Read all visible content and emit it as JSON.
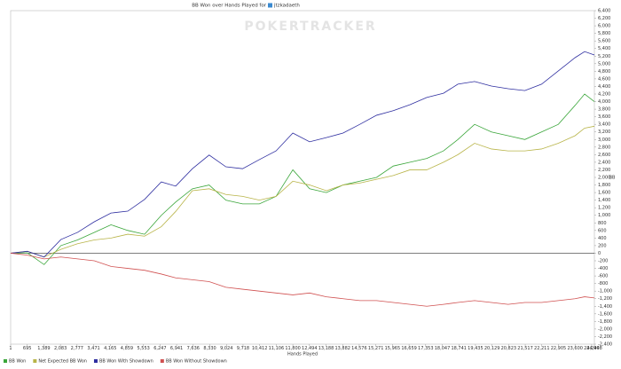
{
  "chart_data": {
    "type": "line",
    "title": "BB Won over Hands Played for",
    "player": "jtzkadaeth",
    "watermark": "POKERTRACKER",
    "x_label": "Hands Played",
    "y_label": "BB",
    "x": [
      0,
      700,
      1400,
      2100,
      2800,
      3500,
      4200,
      4900,
      5600,
      6300,
      6900,
      7600,
      8300,
      9000,
      9700,
      10400,
      11100,
      11800,
      12500,
      13200,
      13900,
      14600,
      15300,
      16000,
      16700,
      17400,
      18100,
      18700,
      19400,
      20100,
      20800,
      21500,
      22200,
      22900,
      23600,
      24000,
      24408
    ],
    "series": [
      {
        "name": "BB Won",
        "color": "#3aa63a",
        "values": [
          0,
          10,
          -300,
          200,
          350,
          550,
          750,
          600,
          500,
          1000,
          1350,
          1700,
          1800,
          1400,
          1300,
          1300,
          1500,
          2200,
          1700,
          1600,
          1800,
          1900,
          2000,
          2300,
          2400,
          2500,
          2700,
          3000,
          3400,
          3200,
          3100,
          3000,
          3200,
          3400,
          3900,
          4200,
          4000
        ]
      },
      {
        "name": "Net Expected BB Won",
        "color": "#b8b448",
        "values": [
          0,
          50,
          -100,
          100,
          250,
          350,
          400,
          500,
          450,
          700,
          1100,
          1650,
          1700,
          1550,
          1500,
          1400,
          1500,
          1900,
          1800,
          1650,
          1800,
          1850,
          1950,
          2050,
          2200,
          2200,
          2400,
          2600,
          2900,
          2750,
          2700,
          2700,
          2750,
          2900,
          3100,
          3300,
          3350
        ]
      },
      {
        "name": "BB Won With Showdown",
        "color": "#2e2ea0",
        "values": [
          0,
          50,
          -100,
          360,
          550,
          830,
          1060,
          1110,
          1420,
          1880,
          1770,
          2230,
          2590,
          2280,
          2230,
          2470,
          2700,
          3170,
          2940,
          3050,
          3170,
          3400,
          3640,
          3760,
          3920,
          4110,
          4220,
          4460,
          4530,
          4410,
          4340,
          4290,
          4460,
          4810,
          5160,
          5320,
          5230
        ]
      },
      {
        "name": "BB Won Without Showdown",
        "color": "#d05050",
        "values": [
          0,
          -50,
          -150,
          -100,
          -150,
          -200,
          -350,
          -400,
          -450,
          -550,
          -650,
          -700,
          -750,
          -900,
          -950,
          -1000,
          -1050,
          -1100,
          -1050,
          -1150,
          -1200,
          -1250,
          -1250,
          -1300,
          -1350,
          -1400,
          -1350,
          -1300,
          -1250,
          -1300,
          -1350,
          -1300,
          -1300,
          -1250,
          -1200,
          -1150,
          -1180
        ]
      }
    ],
    "xlim": [
      1,
      24408
    ],
    "xticks": [
      1,
      695,
      {
        "value": 1389,
        "label": "1,389"
      },
      {
        "value": 2083,
        "label": "2,083"
      },
      {
        "value": 2777,
        "label": "2,777"
      },
      {
        "value": 3471,
        "label": "3,471"
      },
      {
        "value": 4165,
        "label": "4,165"
      },
      {
        "value": 4859,
        "label": "4,859"
      },
      {
        "value": 5553,
        "label": "5,553"
      },
      {
        "value": 6247,
        "label": "6,247"
      },
      {
        "value": 6941,
        "label": "6,941"
      },
      {
        "value": 7636,
        "label": "7,636"
      },
      {
        "value": 8330,
        "label": "8,330"
      },
      {
        "value": 9024,
        "label": "9,024"
      },
      {
        "value": 9718,
        "label": "9,718"
      },
      {
        "value": 10412,
        "label": "10,412"
      },
      {
        "value": 11106,
        "label": "11,106"
      },
      {
        "value": 11800,
        "label": "11,800"
      },
      {
        "value": 12494,
        "label": "12,494"
      },
      {
        "value": 13188,
        "label": "13,188"
      },
      {
        "value": 13882,
        "label": "13,882"
      },
      {
        "value": 14576,
        "label": "14,576"
      },
      {
        "value": 15271,
        "label": "15,271"
      },
      {
        "value": 15965,
        "label": "15,965"
      },
      {
        "value": 16659,
        "label": "16,659"
      },
      {
        "value": 17353,
        "label": "17,353"
      },
      {
        "value": 18047,
        "label": "18,047"
      },
      {
        "value": 18741,
        "label": "18,741"
      },
      {
        "value": 19435,
        "label": "19,435"
      },
      {
        "value": 20129,
        "label": "20,129"
      },
      {
        "value": 20823,
        "label": "20,823"
      },
      {
        "value": 21517,
        "label": "21,517"
      },
      {
        "value": 22211,
        "label": "22,211"
      },
      {
        "value": 22905,
        "label": "22,905"
      },
      {
        "value": 23600,
        "label": "23,600"
      },
      {
        "value": 24294,
        "label": "24,294"
      },
      {
        "value": 24408,
        "label": "24,408"
      }
    ],
    "ylim": [
      -2400,
      6400
    ],
    "yticks": [
      {
        "value": -2400,
        "label": "-2,400"
      },
      {
        "value": -2200,
        "label": "-2,200"
      },
      {
        "value": -2000,
        "label": "-2,000"
      },
      {
        "value": -1800,
        "label": "-1,800"
      },
      {
        "value": -1600,
        "label": "-1,600"
      },
      {
        "value": -1400,
        "label": "-1,400"
      },
      {
        "value": -1200,
        "label": "-1,200"
      },
      {
        "value": -1000,
        "label": "-1,000"
      },
      -800,
      -600,
      -400,
      -200,
      0,
      200,
      400,
      600,
      800,
      {
        "value": 1000,
        "label": "1,000"
      },
      {
        "value": 1200,
        "label": "1,200"
      },
      {
        "value": 1400,
        "label": "1,400"
      },
      {
        "value": 1600,
        "label": "1,600"
      },
      {
        "value": 1800,
        "label": "1,800"
      },
      {
        "value": 2000,
        "label": "2,000"
      },
      {
        "value": 2200,
        "label": "2,200"
      },
      {
        "value": 2400,
        "label": "2,400"
      },
      {
        "value": 2600,
        "label": "2,600"
      },
      {
        "value": 2800,
        "label": "2,800"
      },
      {
        "value": 3000,
        "label": "3,000"
      },
      {
        "value": 3200,
        "label": "3,200"
      },
      {
        "value": 3400,
        "label": "3,400"
      },
      {
        "value": 3600,
        "label": "3,600"
      },
      {
        "value": 3800,
        "label": "3,800"
      },
      {
        "value": 4000,
        "label": "4,000"
      },
      {
        "value": 4200,
        "label": "4,200"
      },
      {
        "value": 4400,
        "label": "4,400"
      },
      {
        "value": 4600,
        "label": "4,600"
      },
      {
        "value": 4800,
        "label": "4,800"
      },
      {
        "value": 5000,
        "label": "5,000"
      },
      {
        "value": 5200,
        "label": "5,200"
      },
      {
        "value": 5400,
        "label": "5,400"
      },
      {
        "value": 5600,
        "label": "5,600"
      },
      {
        "value": 5800,
        "label": "5,800"
      },
      {
        "value": 6000,
        "label": "6,000"
      },
      {
        "value": 6200,
        "label": "6,200"
      },
      {
        "value": 6400,
        "label": "6,400"
      }
    ],
    "grid": false,
    "legend": "bottom-left"
  }
}
